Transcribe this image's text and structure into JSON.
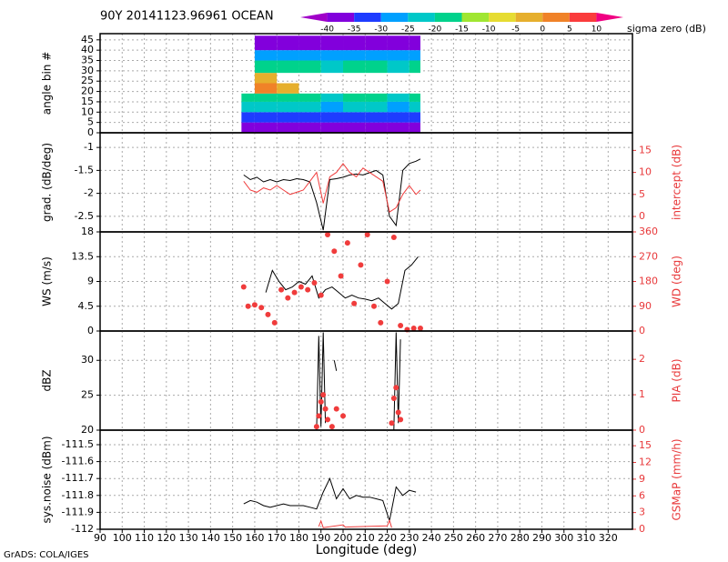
{
  "footer": "GrADS: COLA/IGES",
  "chart_data": [
    {
      "type": "heatmap",
      "title": "90Y 20141123.96961 OCEAN",
      "colorbar_label": "sigma zero (dB)",
      "levels": [
        -40,
        -35,
        -30,
        -25,
        -20,
        -15,
        -10,
        -5,
        0,
        5,
        10
      ],
      "colors": [
        "#a000c8",
        "#8200dc",
        "#1e3cff",
        "#00a0ff",
        "#00c8c8",
        "#00d28c",
        "#a0e632",
        "#e6dc32",
        "#e6af2d",
        "#f08228",
        "#fa3c3c",
        "#f00082"
      ],
      "ylabel": "angle bin #",
      "ylim": [
        0,
        48
      ],
      "yticks": [
        0,
        5,
        10,
        15,
        20,
        25,
        30,
        35,
        40,
        45
      ],
      "x_edges": [
        154,
        160,
        170,
        180,
        190,
        200,
        210,
        220,
        230,
        235
      ],
      "y_edges": [
        0,
        5,
        10,
        15,
        19,
        24,
        29,
        35,
        40,
        47
      ],
      "values": [
        [
          -38,
          -38,
          -38,
          -38,
          -40,
          -38,
          -38,
          -40,
          -38
        ],
        [
          -32,
          -32,
          -31,
          -31,
          -35,
          -32,
          -31,
          -35,
          -32
        ],
        [
          -24,
          -22,
          -22,
          -22,
          -28,
          -22,
          -22,
          -28,
          -23
        ],
        [
          -18,
          -18,
          -18,
          -18,
          -22,
          -18,
          -18,
          -22,
          -20
        ],
        [
          null,
          2,
          -2,
          null,
          null,
          null,
          null,
          null,
          null
        ],
        [
          null,
          -3,
          null,
          null,
          null,
          null,
          null,
          null,
          null
        ],
        [
          null,
          -18,
          -17,
          -17,
          -22,
          -17,
          -17,
          -22,
          -18
        ],
        [
          null,
          -27,
          -26,
          -26,
          -30,
          -26,
          -26,
          -30,
          -27
        ],
        [
          null,
          -36,
          -36,
          -36,
          -38,
          -36,
          -36,
          -38,
          -37
        ]
      ]
    },
    {
      "type": "line",
      "ylabel": "grad. (dB/deg)",
      "y2label": "intercept (dB)",
      "ylim": [
        -2.84,
        -0.68
      ],
      "yticks": [
        -2.5,
        -2,
        -1.5,
        -1
      ],
      "y2lim": [
        -3.5,
        19
      ],
      "y2ticks": [
        0,
        5,
        10,
        15
      ],
      "x": [
        155,
        158,
        161,
        164,
        167,
        170,
        173,
        176,
        179,
        182,
        185,
        188,
        191,
        194,
        197,
        200,
        203,
        206,
        209,
        212,
        215,
        218,
        221,
        224,
        227,
        230,
        233,
        235
      ],
      "series": [
        {
          "color": "#000000",
          "values": [
            -1.6,
            -1.7,
            -1.65,
            -1.75,
            -1.7,
            -1.75,
            -1.7,
            -1.72,
            -1.68,
            -1.7,
            -1.75,
            -2.2,
            -2.8,
            -1.7,
            -1.68,
            -1.65,
            -1.6,
            -1.58,
            -1.6,
            -1.55,
            -1.5,
            -1.6,
            -2.5,
            -2.7,
            -1.5,
            -1.35,
            -1.3,
            -1.25
          ]
        },
        {
          "color": "#f03c3c",
          "axis": "y2",
          "values": [
            8,
            6,
            5.5,
            6.5,
            6,
            7,
            6,
            5,
            5.5,
            6,
            8,
            10,
            3,
            9,
            10,
            12,
            10,
            9,
            11,
            10,
            9,
            8,
            1,
            2,
            5,
            7,
            5,
            6
          ]
        }
      ]
    },
    {
      "type": "line",
      "ylabel": "WS (m/s)",
      "y2label": "WD (deg)",
      "ylim": [
        0,
        18
      ],
      "yticks": [
        0,
        4.5,
        9,
        13.5,
        18
      ],
      "y2lim": [
        0,
        360
      ],
      "y2ticks": [
        0,
        90,
        180,
        270,
        360
      ],
      "series": [
        {
          "color": "#000000",
          "x": [
            165,
            168,
            171,
            174,
            177,
            180,
            183,
            186,
            189,
            192,
            195,
            198,
            201,
            204,
            207,
            210,
            213,
            216,
            219,
            222,
            225,
            228,
            231,
            234
          ],
          "values": [
            7,
            11,
            9,
            7.5,
            8,
            9,
            8.5,
            10,
            6,
            7.5,
            8,
            7,
            6,
            6.5,
            6,
            5.8,
            5.5,
            6,
            5,
            4,
            5,
            11,
            12,
            13.5
          ]
        },
        {
          "color": "#f03c3c",
          "axis": "y2",
          "marker": "dot",
          "x": [
            155,
            157,
            160,
            163,
            166,
            169,
            172,
            175,
            178,
            181,
            184,
            187,
            190,
            193,
            196,
            199,
            202,
            205,
            208,
            211,
            214,
            217,
            220,
            223,
            226,
            229,
            232,
            235
          ],
          "values": [
            160,
            90,
            95,
            85,
            60,
            30,
            150,
            120,
            140,
            160,
            150,
            175,
            130,
            350,
            290,
            200,
            320,
            100,
            240,
            350,
            90,
            30,
            180,
            340,
            20,
            5,
            10,
            10
          ]
        }
      ]
    },
    {
      "type": "line",
      "ylabel": "dBZ",
      "y2label": "PIA (dB)",
      "ylim": [
        20,
        34.2
      ],
      "yticks": [
        20,
        25,
        30
      ],
      "y2lim": [
        0,
        2.8
      ],
      "y2ticks": [
        0,
        1,
        2
      ],
      "series": [
        {
          "color": "#000000",
          "x": [
            188,
            189,
            190,
            191,
            192,
            193,
            196,
            197,
            198,
            222,
            223,
            224,
            225,
            226
          ],
          "values": [
            20,
            33.5,
            20.5,
            34,
            21,
            null,
            30,
            28.5,
            null,
            null,
            20,
            34,
            21,
            33
          ]
        },
        {
          "color": "#f03c3c",
          "axis": "y2",
          "marker": "dot",
          "x": [
            188,
            189,
            190,
            191,
            192,
            193,
            195,
            197,
            200,
            222,
            223,
            224,
            225,
            226
          ],
          "values": [
            0.1,
            0.4,
            0.8,
            1.0,
            0.6,
            0.3,
            0.1,
            0.6,
            0.4,
            0.2,
            0.9,
            1.2,
            0.5,
            0.3
          ]
        }
      ]
    },
    {
      "type": "line",
      "ylabel": "sys.noise (dBm)",
      "y2label": "GSMaP (mm/h)",
      "xlabel": "Longitude (deg)",
      "xlim": [
        90,
        331
      ],
      "xticks": [
        90,
        100,
        110,
        120,
        130,
        140,
        150,
        160,
        170,
        180,
        190,
        200,
        210,
        220,
        230,
        240,
        250,
        260,
        270,
        280,
        290,
        300,
        310,
        320
      ],
      "ylim": [
        -112,
        -111.414
      ],
      "yticks": [
        -112,
        -111.9,
        -111.8,
        -111.7,
        -111.6,
        -111.5
      ],
      "y2lim": [
        0,
        17.8
      ],
      "y2ticks": [
        0,
        3,
        6,
        9,
        12,
        15
      ],
      "series": [
        {
          "color": "#000000",
          "x": [
            155,
            158,
            161,
            164,
            167,
            170,
            173,
            176,
            179,
            182,
            185,
            188,
            191,
            194,
            197,
            200,
            203,
            206,
            209,
            212,
            215,
            218,
            221,
            224,
            227,
            230,
            233
          ],
          "values": [
            -111.85,
            -111.83,
            -111.84,
            -111.86,
            -111.87,
            -111.86,
            -111.85,
            -111.86,
            -111.86,
            -111.86,
            -111.87,
            -111.88,
            -111.78,
            -111.7,
            -111.82,
            -111.76,
            -111.82,
            -111.8,
            -111.81,
            -111.81,
            -111.82,
            -111.83,
            -111.95,
            -111.75,
            -111.8,
            -111.77,
            -111.78
          ]
        },
        {
          "color": "#f03c3c",
          "axis": "y2",
          "x": [
            189,
            190,
            191,
            200,
            201,
            220,
            221,
            222
          ],
          "values": [
            0.5,
            1.5,
            0.3,
            0.8,
            0.4,
            0.6,
            1.6,
            0.3
          ]
        }
      ]
    }
  ]
}
